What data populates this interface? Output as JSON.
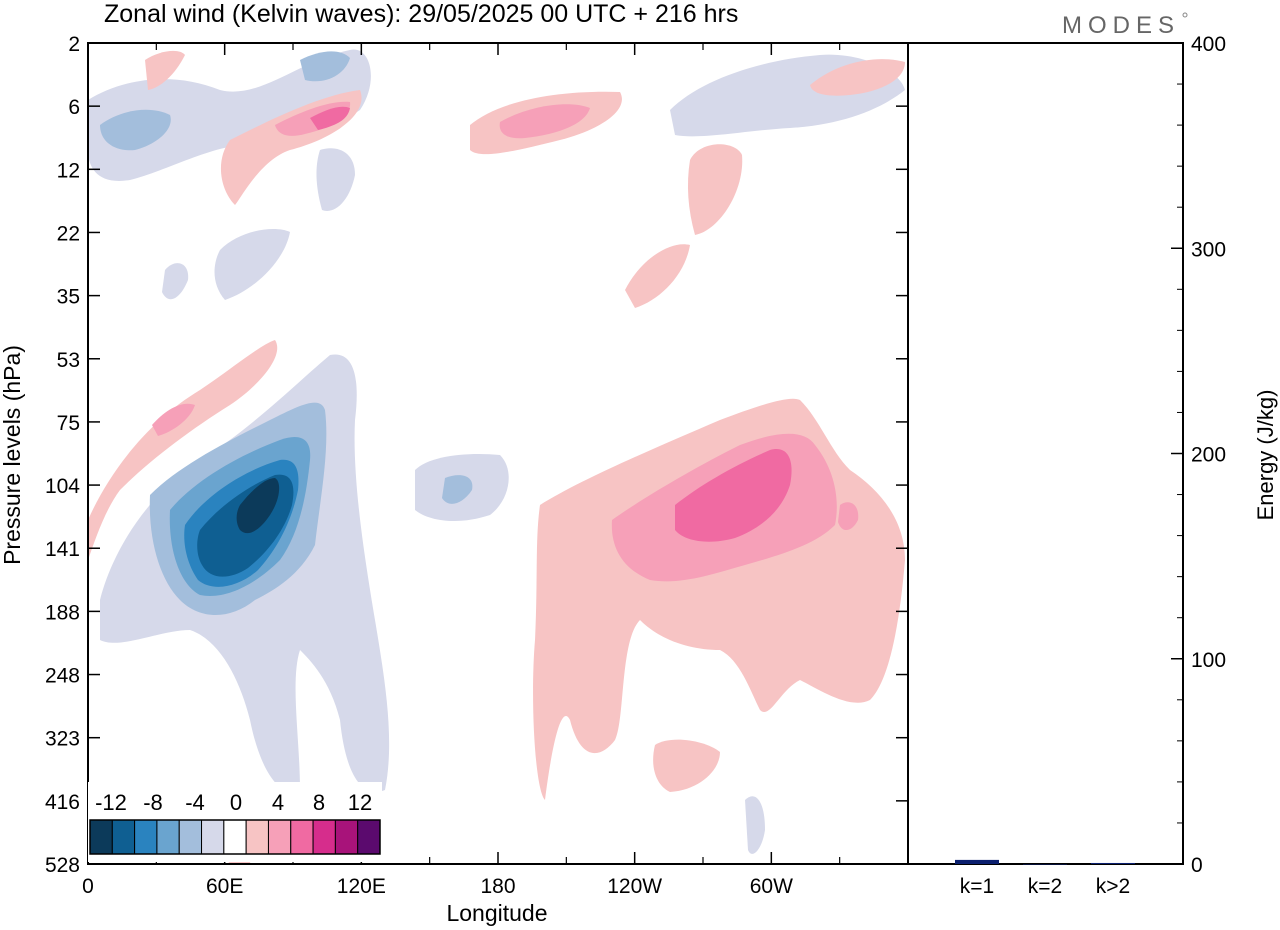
{
  "chart_data": [
    {
      "type": "heatmap",
      "title": "Zonal wind (Kelvin waves):  29/05/2025  00 UTC  + 216 hrs",
      "xlabel": "Longitude",
      "ylabel": "Pressure levels (hPa)",
      "x_ticks": [
        "0",
        "60E",
        "120E",
        "180",
        "120W",
        "60W"
      ],
      "x_tick_values": [
        0,
        60,
        120,
        180,
        240,
        300
      ],
      "xlim": [
        0,
        360
      ],
      "y_ticks": [
        "2",
        "6",
        "12",
        "22",
        "35",
        "53",
        "75",
        "104",
        "141",
        "188",
        "248",
        "323",
        "416",
        "528"
      ],
      "y_scale": "log (inverted, 2 at top, 528 at bottom)",
      "colorbar": {
        "labels": [
          "-12",
          "-8",
          "-4",
          "0",
          "4",
          "8",
          "12"
        ],
        "levels": [
          -14,
          -12,
          -10,
          -8,
          -6,
          -4,
          -2,
          2,
          4,
          6,
          8,
          10,
          12,
          14
        ],
        "colors": [
          "#0c3a5a",
          "#0f5f92",
          "#2a83bf",
          "#6aa4cf",
          "#a3bedc",
          "#d6d9ea",
          "#ffffff",
          "#f7c4c4",
          "#f6a0b8",
          "#f06aa2",
          "#d62d8c",
          "#a8137a",
          "#5b0a6e"
        ]
      },
      "blobs": [
        {
          "lon": 60,
          "lev": 125,
          "value": -10
        },
        {
          "lon": 75,
          "lev": 120,
          "value": -13
        },
        {
          "lon": 40,
          "lev": 30,
          "value": -3
        },
        {
          "lon": 200,
          "lev": 8,
          "value": 6
        },
        {
          "lon": 280,
          "lev": 120,
          "value": 9
        },
        {
          "lon": 255,
          "lev": 200,
          "value": 3
        }
      ]
    },
    {
      "type": "bar",
      "ylabel": "Energy (J/kg)",
      "categories": [
        "k=1",
        "k=2",
        "k>2"
      ],
      "values": [
        2,
        0,
        0.5
      ],
      "ylim": [
        0,
        400
      ],
      "y_ticks": [
        "0",
        "100",
        "200",
        "300",
        "400"
      ],
      "bar_color": "#0b1f6e"
    }
  ],
  "brand": "MODES"
}
